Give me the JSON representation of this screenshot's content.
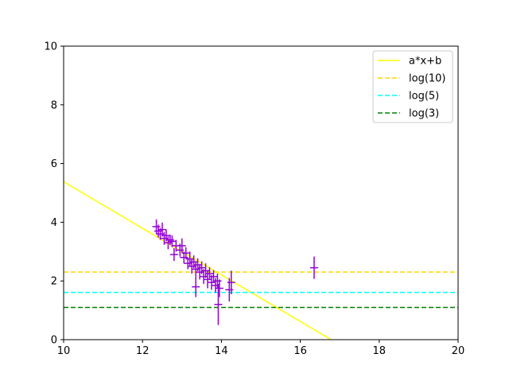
{
  "chart_data": {
    "type": "scatter",
    "title": "",
    "xlabel": "",
    "ylabel": "",
    "xlim": [
      10,
      20
    ],
    "ylim": [
      0,
      10
    ],
    "xticks": [
      10,
      12,
      14,
      16,
      18,
      20
    ],
    "yticks": [
      0,
      2,
      4,
      6,
      8,
      10
    ],
    "xtick_labels": [
      "10",
      "12",
      "14",
      "16",
      "18",
      "20"
    ],
    "ytick_labels": [
      "0",
      "2",
      "4",
      "6",
      "8",
      "10"
    ],
    "grid": false,
    "legend_position": "top-right",
    "colors": {
      "points": "#9400d3",
      "fit": "#ffff00",
      "log10": "#ffd700",
      "log5": "#00ffff",
      "log3": "#008000"
    },
    "lines": [
      {
        "name": "a*x+b",
        "kind": "linear",
        "x": [
          10,
          16.78
        ],
        "y": [
          5.38,
          0
        ],
        "color": "#ffff00",
        "dash": "solid"
      },
      {
        "name": "log(10)",
        "kind": "hline",
        "y": 2.303,
        "color": "#ffd700",
        "dash": "dashed"
      },
      {
        "name": "log(5)",
        "kind": "hline",
        "y": 1.609,
        "color": "#00ffff",
        "dash": "dashed"
      },
      {
        "name": "log(3)",
        "kind": "hline",
        "y": 1.099,
        "color": "#008000",
        "dash": "dashed"
      }
    ],
    "series": [
      {
        "points": [
          [
            12.35,
            3.85,
            0.25
          ],
          [
            12.4,
            3.7,
            0.22
          ],
          [
            12.45,
            3.6,
            0.2
          ],
          [
            12.5,
            3.75,
            0.24
          ],
          [
            12.55,
            3.45,
            0.22
          ],
          [
            12.6,
            3.55,
            0.2
          ],
          [
            12.65,
            3.3,
            0.22
          ],
          [
            12.7,
            3.4,
            0.18
          ],
          [
            12.75,
            3.35,
            0.2
          ],
          [
            12.8,
            2.9,
            0.22
          ],
          [
            12.85,
            3.2,
            0.2
          ],
          [
            12.95,
            3.05,
            0.22
          ],
          [
            13.0,
            3.2,
            0.25
          ],
          [
            13.05,
            2.8,
            0.2
          ],
          [
            13.1,
            2.95,
            0.2
          ],
          [
            13.15,
            2.6,
            0.2
          ],
          [
            13.2,
            2.75,
            0.25
          ],
          [
            13.25,
            2.5,
            0.25
          ],
          [
            13.3,
            2.65,
            0.22
          ],
          [
            13.35,
            2.4,
            0.25
          ],
          [
            13.35,
            1.8,
            0.35
          ],
          [
            13.4,
            2.55,
            0.22
          ],
          [
            13.45,
            2.3,
            0.25
          ],
          [
            13.5,
            2.45,
            0.22
          ],
          [
            13.55,
            2.15,
            0.25
          ],
          [
            13.6,
            2.35,
            0.25
          ],
          [
            13.65,
            2.05,
            0.3
          ],
          [
            13.7,
            2.25,
            0.22
          ],
          [
            13.75,
            1.95,
            0.25
          ],
          [
            13.8,
            2.15,
            0.22
          ],
          [
            13.85,
            1.85,
            0.25
          ],
          [
            13.9,
            2.0,
            0.25
          ],
          [
            13.92,
            1.2,
            0.7
          ],
          [
            13.95,
            1.75,
            0.3
          ],
          [
            14.2,
            1.7,
            0.4
          ],
          [
            14.25,
            1.95,
            0.4
          ],
          [
            16.35,
            2.45,
            0.38
          ]
        ]
      }
    ]
  }
}
